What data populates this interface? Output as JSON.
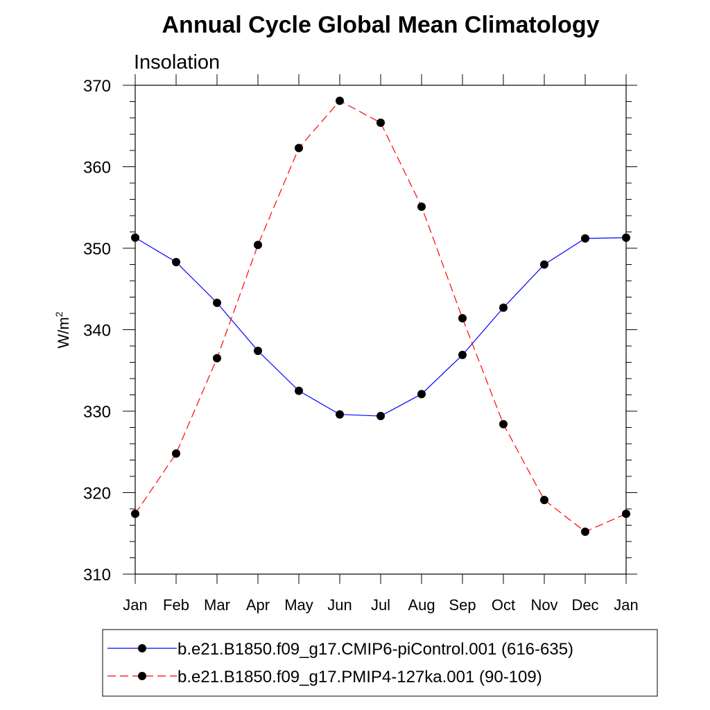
{
  "chart_data": {
    "type": "line",
    "title": "Annual Cycle Global Mean Climatology",
    "subtitle": "Insolation",
    "xlabel": "",
    "ylabel": "W/m",
    "ylabel_superscript": "2",
    "categories": [
      "Jan",
      "Feb",
      "Mar",
      "Apr",
      "May",
      "Jun",
      "Jul",
      "Aug",
      "Sep",
      "Oct",
      "Nov",
      "Dec",
      "Jan"
    ],
    "ylim": [
      310,
      370
    ],
    "yticks": [
      310,
      320,
      330,
      340,
      350,
      360,
      370
    ],
    "series": [
      {
        "name": "b.e21.B1850.f09_g17.CMIP6-piControl.001 (616-635)",
        "line_style": "solid",
        "color": "#0000ff",
        "marker_color": "#000000",
        "values": [
          351.3,
          348.3,
          343.3,
          337.4,
          332.5,
          329.6,
          329.4,
          332.1,
          336.9,
          342.7,
          348.0,
          351.2,
          351.3
        ]
      },
      {
        "name": "b.e21.B1850.f09_g17.PMIP4-127ka.001 (90-109)",
        "line_style": "dashed",
        "color": "#ff0000",
        "marker_color": "#000000",
        "values": [
          317.4,
          324.8,
          336.5,
          350.4,
          362.3,
          368.1,
          365.4,
          355.1,
          341.4,
          328.4,
          319.1,
          315.2,
          317.4
        ]
      }
    ]
  }
}
